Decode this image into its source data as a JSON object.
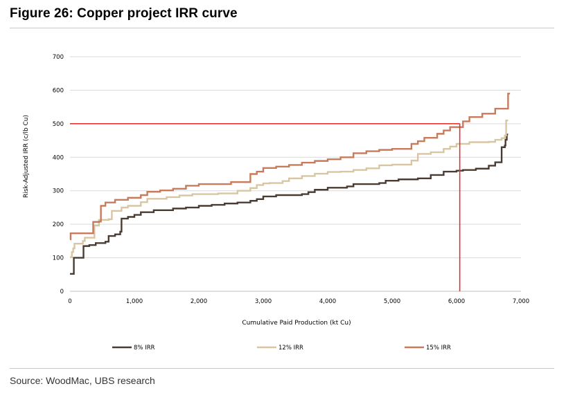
{
  "header": {
    "title": "Figure 26: Copper project IRR curve"
  },
  "footer": {
    "source": "Source: WoodMac, UBS research"
  },
  "colors": {
    "irr8": "#4a3b32",
    "irr12": "#d8c6a3",
    "irr15": "#c87a5c",
    "ref": "#e03434",
    "grid": "#d9d9d9"
  },
  "chart_data": {
    "type": "line",
    "xlabel": "Cumulative Paid Production (kt Cu)",
    "ylabel": "Risk-Adjusted IRR (c/lb Cu)",
    "xlim": [
      0,
      7000
    ],
    "ylim": [
      0,
      700
    ],
    "x_ticks": [
      "0",
      "1,000",
      "2,000",
      "3,000",
      "4,000",
      "5,000",
      "6,000",
      "7,000"
    ],
    "y_ticks": [
      "0",
      "100",
      "200",
      "300",
      "400",
      "500",
      "600",
      "700"
    ],
    "grid": "horizontal",
    "legend_position": "bottom",
    "series": [
      {
        "name": "8% IRR",
        "color_key": "irr8",
        "points": [
          [
            0,
            52
          ],
          [
            50,
            52
          ],
          [
            60,
            100
          ],
          [
            200,
            100
          ],
          [
            210,
            135
          ],
          [
            300,
            138
          ],
          [
            400,
            144
          ],
          [
            550,
            148
          ],
          [
            600,
            165
          ],
          [
            700,
            170
          ],
          [
            780,
            178
          ],
          [
            800,
            217
          ],
          [
            900,
            222
          ],
          [
            1000,
            228
          ],
          [
            1100,
            236
          ],
          [
            1300,
            242
          ],
          [
            1600,
            247
          ],
          [
            1800,
            250
          ],
          [
            2000,
            255
          ],
          [
            2200,
            258
          ],
          [
            2400,
            262
          ],
          [
            2600,
            265
          ],
          [
            2800,
            270
          ],
          [
            2900,
            275
          ],
          [
            3000,
            283
          ],
          [
            3200,
            287
          ],
          [
            3600,
            290
          ],
          [
            3700,
            296
          ],
          [
            3800,
            303
          ],
          [
            4000,
            309
          ],
          [
            4300,
            313
          ],
          [
            4400,
            320
          ],
          [
            4800,
            323
          ],
          [
            4900,
            330
          ],
          [
            5100,
            334
          ],
          [
            5400,
            337
          ],
          [
            5600,
            347
          ],
          [
            5800,
            357
          ],
          [
            6000,
            360
          ],
          [
            6100,
            362
          ],
          [
            6300,
            366
          ],
          [
            6500,
            375
          ],
          [
            6600,
            385
          ],
          [
            6700,
            392
          ],
          [
            6700,
            430
          ],
          [
            6750,
            435
          ],
          [
            6760,
            452
          ],
          [
            6780,
            468
          ],
          [
            6800,
            468
          ]
        ]
      },
      {
        "name": "12% IRR",
        "color_key": "irr12",
        "points": [
          [
            0,
            102
          ],
          [
            30,
            117
          ],
          [
            50,
            128
          ],
          [
            70,
            142
          ],
          [
            200,
            150
          ],
          [
            230,
            160
          ],
          [
            350,
            160
          ],
          [
            380,
            196
          ],
          [
            450,
            213
          ],
          [
            600,
            215
          ],
          [
            650,
            240
          ],
          [
            800,
            250
          ],
          [
            900,
            255
          ],
          [
            1100,
            266
          ],
          [
            1200,
            276
          ],
          [
            1500,
            281
          ],
          [
            1700,
            286
          ],
          [
            1900,
            290
          ],
          [
            2000,
            290
          ],
          [
            2300,
            292
          ],
          [
            2600,
            300
          ],
          [
            2800,
            308
          ],
          [
            2900,
            317
          ],
          [
            3000,
            322
          ],
          [
            3100,
            323
          ],
          [
            3300,
            329
          ],
          [
            3400,
            337
          ],
          [
            3600,
            344
          ],
          [
            3800,
            351
          ],
          [
            4000,
            356
          ],
          [
            4200,
            357
          ],
          [
            4400,
            362
          ],
          [
            4600,
            367
          ],
          [
            4800,
            376
          ],
          [
            5000,
            378
          ],
          [
            5300,
            390
          ],
          [
            5400,
            410
          ],
          [
            5600,
            415
          ],
          [
            5800,
            425
          ],
          [
            5900,
            432
          ],
          [
            6000,
            440
          ],
          [
            6200,
            445
          ],
          [
            6500,
            446
          ],
          [
            6600,
            452
          ],
          [
            6700,
            457
          ],
          [
            6750,
            465
          ],
          [
            6770,
            510
          ],
          [
            6800,
            510
          ]
        ]
      },
      {
        "name": "15% IRR",
        "color_key": "irr15",
        "points": [
          [
            0,
            155
          ],
          [
            10,
            173
          ],
          [
            350,
            173
          ],
          [
            360,
            207
          ],
          [
            450,
            208
          ],
          [
            480,
            255
          ],
          [
            550,
            265
          ],
          [
            700,
            273
          ],
          [
            900,
            279
          ],
          [
            1100,
            287
          ],
          [
            1200,
            297
          ],
          [
            1400,
            301
          ],
          [
            1600,
            306
          ],
          [
            1800,
            315
          ],
          [
            2000,
            320
          ],
          [
            2300,
            320
          ],
          [
            2500,
            326
          ],
          [
            2800,
            330
          ],
          [
            2800,
            350
          ],
          [
            2900,
            357
          ],
          [
            3000,
            368
          ],
          [
            3200,
            372
          ],
          [
            3400,
            377
          ],
          [
            3600,
            384
          ],
          [
            3800,
            389
          ],
          [
            4000,
            394
          ],
          [
            4200,
            400
          ],
          [
            4400,
            412
          ],
          [
            4600,
            418
          ],
          [
            4800,
            422
          ],
          [
            5000,
            425
          ],
          [
            5300,
            440
          ],
          [
            5400,
            448
          ],
          [
            5500,
            458
          ],
          [
            5700,
            470
          ],
          [
            5800,
            480
          ],
          [
            5900,
            490
          ],
          [
            6100,
            507
          ],
          [
            6200,
            520
          ],
          [
            6400,
            530
          ],
          [
            6600,
            545
          ],
          [
            6800,
            545
          ],
          [
            6800,
            590
          ],
          [
            6830,
            590
          ]
        ]
      }
    ],
    "reference_lines": [
      {
        "axis": "y",
        "value": 500,
        "from_x": 0,
        "to_x": 6050,
        "color_key": "ref"
      },
      {
        "axis": "x",
        "value": 6050,
        "from_y": 0,
        "to_y": 500,
        "color_key": "ref"
      }
    ]
  }
}
